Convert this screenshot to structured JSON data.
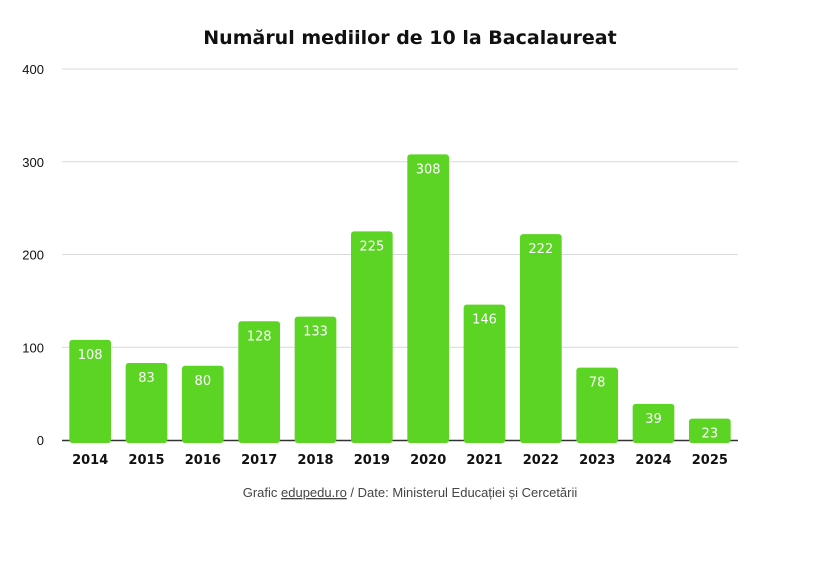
{
  "chart_data": {
    "type": "bar",
    "title": "Numărul mediilor de 10 la Bacalaureat",
    "categories": [
      "2014",
      "2015",
      "2016",
      "2017",
      "2018",
      "2019",
      "2020",
      "2021",
      "2022",
      "2023",
      "2024",
      "2025"
    ],
    "values": [
      108,
      83,
      80,
      128,
      133,
      225,
      308,
      146,
      222,
      78,
      39,
      23
    ],
    "ylim": [
      0,
      400
    ],
    "yticks": [
      "0",
      "100",
      "200",
      "300",
      "400"
    ],
    "grid": true,
    "bar_color": "#5bd424",
    "data_labels_inside": true
  },
  "caption": {
    "prefix": "Grafic ",
    "link": "edupedu.ro",
    "suffix": " / Date: Ministerul Educației și Cercetării"
  }
}
